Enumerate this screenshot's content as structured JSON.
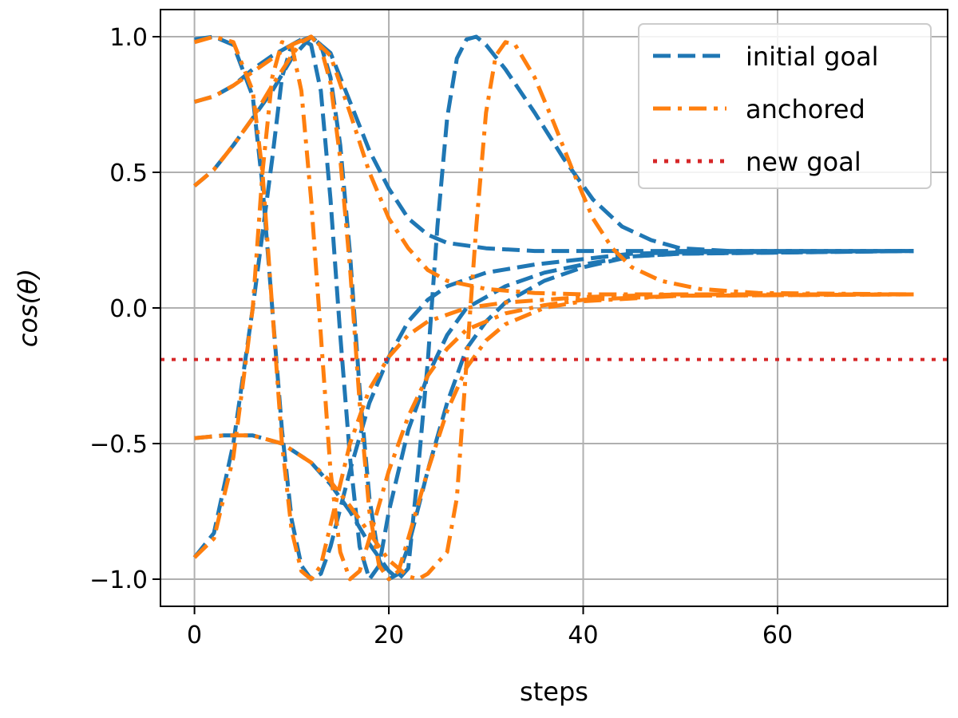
{
  "chart_data": {
    "type": "line",
    "xlabel": "steps",
    "ylabel": "cos(θ)",
    "xlim": [
      -3.5,
      77.5
    ],
    "ylim": [
      -1.1,
      1.1
    ],
    "xticks": [
      0,
      20,
      40,
      60
    ],
    "xtick_labels": [
      "0",
      "20",
      "40",
      "60"
    ],
    "yticks": [
      1.0,
      0.5,
      0.0,
      -0.5,
      -1.0
    ],
    "ytick_labels": [
      "1.0",
      "0.5",
      "0.0",
      "−0.5",
      "−1.0"
    ],
    "grid": true,
    "legend": {
      "placement": "top-right",
      "entries": [
        {
          "label": "initial goal",
          "color": "#1f77b4",
          "style": "dashed"
        },
        {
          "label": "anchored",
          "color": "#ff7f0e",
          "style": "dashdot"
        },
        {
          "label": "new goal",
          "color": "#d62728",
          "style": "dotted"
        }
      ]
    },
    "series": [
      {
        "group": "initial goal",
        "color": "#1f77b4",
        "style": "dashed",
        "points": [
          [
            0,
            0.76
          ],
          [
            2,
            0.78
          ],
          [
            4,
            0.82
          ],
          [
            6,
            0.88
          ],
          [
            8,
            0.93
          ],
          [
            10,
            0.97
          ],
          [
            12,
            1.0
          ],
          [
            14,
            0.94
          ],
          [
            16,
            0.76
          ],
          [
            18,
            0.58
          ],
          [
            20,
            0.44
          ],
          [
            22,
            0.33
          ],
          [
            24,
            0.27
          ],
          [
            26,
            0.24
          ],
          [
            30,
            0.22
          ],
          [
            35,
            0.21
          ],
          [
            40,
            0.21
          ],
          [
            50,
            0.21
          ],
          [
            74,
            0.21
          ]
        ]
      },
      {
        "group": "initial goal",
        "color": "#1f77b4",
        "style": "dashed",
        "points": [
          [
            0,
            0.99
          ],
          [
            2,
            1.0
          ],
          [
            4,
            0.97
          ],
          [
            6,
            0.78
          ],
          [
            7,
            0.45
          ],
          [
            8,
            0.0
          ],
          [
            9,
            -0.45
          ],
          [
            10,
            -0.78
          ],
          [
            11,
            -0.95
          ],
          [
            12,
            -1.0
          ],
          [
            13,
            -0.98
          ],
          [
            14,
            -0.88
          ],
          [
            16,
            -0.6
          ],
          [
            18,
            -0.35
          ],
          [
            20,
            -0.18
          ],
          [
            22,
            -0.05
          ],
          [
            24,
            0.03
          ],
          [
            26,
            0.08
          ],
          [
            30,
            0.13
          ],
          [
            35,
            0.16
          ],
          [
            40,
            0.18
          ],
          [
            45,
            0.2
          ],
          [
            50,
            0.205
          ],
          [
            74,
            0.21
          ]
        ]
      },
      {
        "group": "initial goal",
        "color": "#1f77b4",
        "style": "dashed",
        "points": [
          [
            0,
            -0.92
          ],
          [
            2,
            -0.83
          ],
          [
            4,
            -0.5
          ],
          [
            6,
            0.0
          ],
          [
            8,
            0.55
          ],
          [
            9,
            0.85
          ],
          [
            10,
            0.97
          ],
          [
            11,
            0.99
          ],
          [
            12,
            0.97
          ],
          [
            13,
            0.8
          ],
          [
            14,
            0.4
          ],
          [
            15,
            -0.1
          ],
          [
            16,
            -0.55
          ],
          [
            17,
            -0.88
          ],
          [
            18,
            -1.0
          ],
          [
            19,
            -0.95
          ],
          [
            20,
            -0.75
          ],
          [
            22,
            -0.45
          ],
          [
            24,
            -0.25
          ],
          [
            26,
            -0.1
          ],
          [
            28,
            0.0
          ],
          [
            32,
            0.08
          ],
          [
            36,
            0.13
          ],
          [
            40,
            0.16
          ],
          [
            45,
            0.19
          ],
          [
            50,
            0.2
          ],
          [
            74,
            0.21
          ]
        ]
      },
      {
        "group": "initial goal",
        "color": "#1f77b4",
        "style": "dashed",
        "points": [
          [
            0,
            -0.48
          ],
          [
            3,
            -0.47
          ],
          [
            6,
            -0.47
          ],
          [
            9,
            -0.5
          ],
          [
            12,
            -0.57
          ],
          [
            14,
            -0.65
          ],
          [
            16,
            -0.75
          ],
          [
            18,
            -0.87
          ],
          [
            20,
            -0.97
          ],
          [
            21,
            -1.0
          ],
          [
            22,
            -0.96
          ],
          [
            23,
            -0.6
          ],
          [
            24,
            -0.2
          ],
          [
            25,
            0.3
          ],
          [
            26,
            0.7
          ],
          [
            27,
            0.92
          ],
          [
            28,
            0.99
          ],
          [
            29,
            1.0
          ],
          [
            30,
            0.97
          ],
          [
            32,
            0.88
          ],
          [
            35,
            0.72
          ],
          [
            38,
            0.55
          ],
          [
            41,
            0.4
          ],
          [
            44,
            0.3
          ],
          [
            47,
            0.25
          ],
          [
            50,
            0.22
          ],
          [
            55,
            0.21
          ],
          [
            74,
            0.21
          ]
        ]
      },
      {
        "group": "initial goal",
        "color": "#1f77b4",
        "style": "dashed",
        "points": [
          [
            0,
            0.45
          ],
          [
            2,
            0.51
          ],
          [
            4,
            0.6
          ],
          [
            6,
            0.7
          ],
          [
            8,
            0.8
          ],
          [
            10,
            0.92
          ],
          [
            12,
            1.0
          ],
          [
            13,
            0.97
          ],
          [
            14,
            0.85
          ],
          [
            15,
            0.6
          ],
          [
            16,
            0.2
          ],
          [
            17,
            -0.3
          ],
          [
            18,
            -0.7
          ],
          [
            19,
            -0.93
          ],
          [
            20,
            -1.0
          ],
          [
            21,
            -0.98
          ],
          [
            22,
            -0.88
          ],
          [
            24,
            -0.6
          ],
          [
            26,
            -0.35
          ],
          [
            28,
            -0.15
          ],
          [
            30,
            -0.05
          ],
          [
            32,
            0.02
          ],
          [
            36,
            0.1
          ],
          [
            40,
            0.15
          ],
          [
            45,
            0.19
          ],
          [
            50,
            0.2
          ],
          [
            74,
            0.21
          ]
        ]
      },
      {
        "group": "anchored",
        "color": "#ff7f0e",
        "style": "dashdot",
        "points": [
          [
            0,
            0.76
          ],
          [
            2,
            0.78
          ],
          [
            4,
            0.82
          ],
          [
            6,
            0.87
          ],
          [
            8,
            0.92
          ],
          [
            10,
            0.97
          ],
          [
            12,
            1.0
          ],
          [
            14,
            0.93
          ],
          [
            16,
            0.72
          ],
          [
            18,
            0.5
          ],
          [
            20,
            0.33
          ],
          [
            22,
            0.22
          ],
          [
            24,
            0.14
          ],
          [
            26,
            0.1
          ],
          [
            30,
            0.07
          ],
          [
            35,
            0.055
          ],
          [
            40,
            0.05
          ],
          [
            50,
            0.05
          ],
          [
            74,
            0.05
          ]
        ]
      },
      {
        "group": "anchored",
        "color": "#ff7f0e",
        "style": "dashdot",
        "points": [
          [
            0,
            0.98
          ],
          [
            2,
            1.0
          ],
          [
            4,
            0.98
          ],
          [
            6,
            0.8
          ],
          [
            7,
            0.5
          ],
          [
            8,
            0.0
          ],
          [
            9,
            -0.5
          ],
          [
            10,
            -0.82
          ],
          [
            11,
            -0.97
          ],
          [
            12,
            -1.0
          ],
          [
            13,
            -0.95
          ],
          [
            14,
            -0.8
          ],
          [
            16,
            -0.5
          ],
          [
            18,
            -0.3
          ],
          [
            20,
            -0.18
          ],
          [
            22,
            -0.1
          ],
          [
            24,
            -0.05
          ],
          [
            28,
            0.0
          ],
          [
            32,
            0.02
          ],
          [
            36,
            0.03
          ],
          [
            40,
            0.04
          ],
          [
            50,
            0.05
          ],
          [
            74,
            0.05
          ]
        ]
      },
      {
        "group": "anchored",
        "color": "#ff7f0e",
        "style": "dashdot",
        "points": [
          [
            0,
            -0.92
          ],
          [
            2,
            -0.85
          ],
          [
            4,
            -0.55
          ],
          [
            6,
            0.0
          ],
          [
            7,
            0.5
          ],
          [
            8,
            0.85
          ],
          [
            9,
            0.98
          ],
          [
            10,
            0.97
          ],
          [
            11,
            0.8
          ],
          [
            12,
            0.4
          ],
          [
            13,
            -0.1
          ],
          [
            14,
            -0.6
          ],
          [
            15,
            -0.9
          ],
          [
            16,
            -1.0
          ],
          [
            17,
            -0.97
          ],
          [
            18,
            -0.85
          ],
          [
            20,
            -0.6
          ],
          [
            22,
            -0.4
          ],
          [
            24,
            -0.25
          ],
          [
            26,
            -0.15
          ],
          [
            28,
            -0.08
          ],
          [
            32,
            -0.02
          ],
          [
            36,
            0.01
          ],
          [
            40,
            0.03
          ],
          [
            50,
            0.045
          ],
          [
            74,
            0.05
          ]
        ]
      },
      {
        "group": "anchored",
        "color": "#ff7f0e",
        "style": "dashdot",
        "points": [
          [
            0,
            -0.48
          ],
          [
            3,
            -0.47
          ],
          [
            6,
            -0.47
          ],
          [
            9,
            -0.5
          ],
          [
            12,
            -0.57
          ],
          [
            14,
            -0.64
          ],
          [
            16,
            -0.73
          ],
          [
            18,
            -0.83
          ],
          [
            20,
            -0.93
          ],
          [
            22,
            -0.99
          ],
          [
            23,
            -1.0
          ],
          [
            24,
            -0.98
          ],
          [
            26,
            -0.9
          ],
          [
            27,
            -0.7
          ],
          [
            28,
            -0.2
          ],
          [
            29,
            0.3
          ],
          [
            30,
            0.72
          ],
          [
            31,
            0.93
          ],
          [
            32,
            0.98
          ],
          [
            33,
            0.97
          ],
          [
            35,
            0.85
          ],
          [
            37,
            0.68
          ],
          [
            39,
            0.5
          ],
          [
            41,
            0.33
          ],
          [
            43,
            0.22
          ],
          [
            45,
            0.15
          ],
          [
            48,
            0.1
          ],
          [
            52,
            0.07
          ],
          [
            58,
            0.055
          ],
          [
            74,
            0.05
          ]
        ]
      },
      {
        "group": "anchored",
        "color": "#ff7f0e",
        "style": "dashdot",
        "points": [
          [
            0,
            0.45
          ],
          [
            2,
            0.51
          ],
          [
            4,
            0.6
          ],
          [
            6,
            0.7
          ],
          [
            8,
            0.82
          ],
          [
            10,
            0.93
          ],
          [
            11,
            0.98
          ],
          [
            12,
            1.0
          ],
          [
            13,
            0.96
          ],
          [
            14,
            0.83
          ],
          [
            15,
            0.55
          ],
          [
            16,
            0.15
          ],
          [
            17,
            -0.35
          ],
          [
            18,
            -0.75
          ],
          [
            19,
            -0.95
          ],
          [
            20,
            -1.0
          ],
          [
            21,
            -0.97
          ],
          [
            22,
            -0.85
          ],
          [
            24,
            -0.6
          ],
          [
            26,
            -0.38
          ],
          [
            28,
            -0.22
          ],
          [
            30,
            -0.12
          ],
          [
            32,
            -0.06
          ],
          [
            36,
            0.0
          ],
          [
            40,
            0.025
          ],
          [
            50,
            0.045
          ],
          [
            74,
            0.05
          ]
        ]
      },
      {
        "group": "new goal",
        "color": "#d62728",
        "style": "dotted",
        "points": [
          [
            -3.5,
            -0.19
          ],
          [
            77.5,
            -0.19
          ]
        ]
      }
    ]
  }
}
